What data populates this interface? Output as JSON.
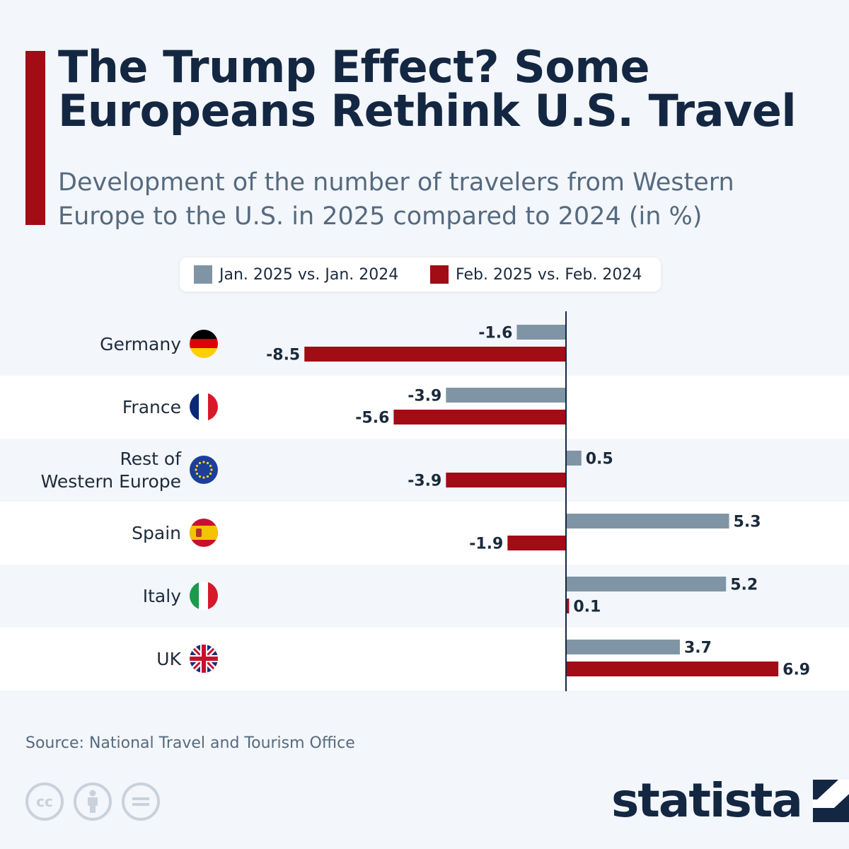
{
  "header": {
    "title": "The Trump Effect? Some Europeans Rethink U.S. Travel",
    "subtitle": "Development of the number of travelers from Western Europe to the U.S. in 2025 compared to 2024 (in %)"
  },
  "legend": {
    "series_a_label": "Jan. 2025 vs. Jan. 2024",
    "series_b_label": "Feb. 2025 vs. Feb. 2024"
  },
  "colors": {
    "accent": "#a10c15",
    "series_a": "#7f95a5",
    "series_b": "#a10c15",
    "title": "#142742"
  },
  "chart_data": {
    "type": "bar",
    "orientation": "horizontal",
    "categories": [
      "Germany",
      "France",
      "Rest of Western Europe",
      "Spain",
      "Italy",
      "UK"
    ],
    "series": [
      {
        "name": "Jan. 2025 vs. Jan. 2024",
        "values": [
          -1.6,
          -3.9,
          0.5,
          5.3,
          5.2,
          3.7
        ]
      },
      {
        "name": "Feb. 2025 vs. Feb. 2024",
        "values": [
          -8.5,
          -5.6,
          -3.9,
          -1.9,
          0.1,
          6.9
        ]
      }
    ],
    "value_labels": {
      "a": [
        "-1.6",
        "-3.9",
        "0.5",
        "5.3",
        "5.2",
        "3.7"
      ],
      "b": [
        "-8.5",
        "-5.6",
        "-3.9",
        "-1.9",
        "0.1",
        "6.9"
      ]
    },
    "title": "The Trump Effect? Some Europeans Rethink U.S. Travel",
    "ylabel": "",
    "xlabel": "",
    "grid": false,
    "legend_position": "top-center"
  },
  "rows": [
    {
      "label_lines": [
        "Germany"
      ],
      "flag": "germany-flag-icon"
    },
    {
      "label_lines": [
        "France"
      ],
      "flag": "france-flag-icon"
    },
    {
      "label_lines": [
        "Rest of",
        "Western Europe"
      ],
      "flag": "eu-flag-icon"
    },
    {
      "label_lines": [
        "Spain"
      ],
      "flag": "spain-flag-icon"
    },
    {
      "label_lines": [
        "Italy"
      ],
      "flag": "italy-flag-icon"
    },
    {
      "label_lines": [
        "UK"
      ],
      "flag": "uk-flag-icon"
    }
  ],
  "footer": {
    "source": "Source: National Travel and Tourism Office",
    "cc_icons": [
      "cc-icon",
      "attribution-icon",
      "no-derivatives-icon"
    ],
    "logo_text": "statista"
  }
}
